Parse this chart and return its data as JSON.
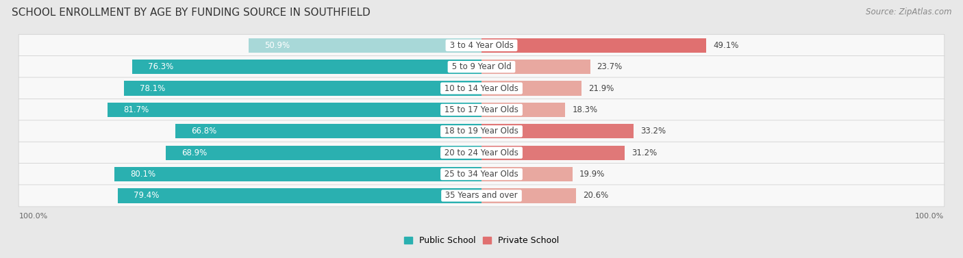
{
  "title": "SCHOOL ENROLLMENT BY AGE BY FUNDING SOURCE IN SOUTHFIELD",
  "source": "Source: ZipAtlas.com",
  "categories": [
    "3 to 4 Year Olds",
    "5 to 9 Year Old",
    "10 to 14 Year Olds",
    "15 to 17 Year Olds",
    "18 to 19 Year Olds",
    "20 to 24 Year Olds",
    "25 to 34 Year Olds",
    "35 Years and over"
  ],
  "public_values": [
    50.9,
    76.3,
    78.1,
    81.7,
    66.8,
    68.9,
    80.1,
    79.4
  ],
  "private_values": [
    49.1,
    23.7,
    21.9,
    18.3,
    33.2,
    31.2,
    19.9,
    20.6
  ],
  "public_colors": [
    "#a8d8d8",
    "#2ab0b0",
    "#2ab0b0",
    "#2ab0b0",
    "#2ab0b0",
    "#2ab0b0",
    "#2ab0b0",
    "#2ab0b0"
  ],
  "private_colors": [
    "#e07070",
    "#e8a8a0",
    "#e8a8a0",
    "#e8a8a0",
    "#e07878",
    "#e07878",
    "#e8a8a0",
    "#e8a8a0"
  ],
  "background_color": "#e8e8e8",
  "row_bg_even": "#f5f5f5",
  "row_bg_odd": "#ebebeb",
  "label_color_white": "#ffffff",
  "label_color_dark": "#444444",
  "title_fontsize": 11,
  "source_fontsize": 8.5,
  "value_fontsize": 8.5,
  "category_fontsize": 8.5,
  "legend_fontsize": 9,
  "axis_label_fontsize": 8
}
